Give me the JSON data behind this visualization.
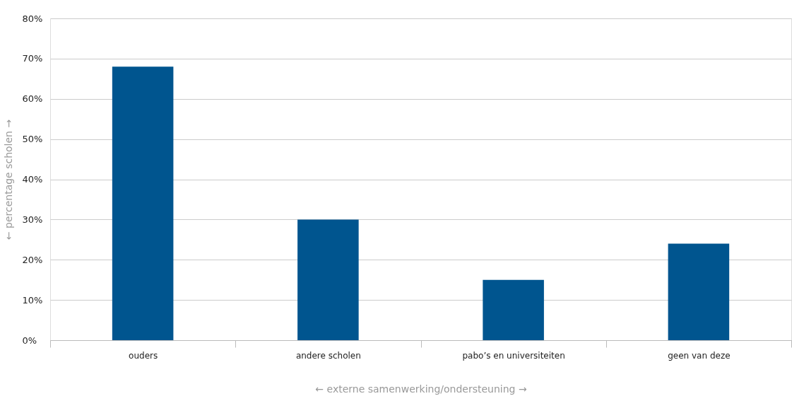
{
  "chart_data": {
    "type": "bar",
    "xlabel": "← externe samenwerking/ondersteuning →",
    "ylabel": "← percentage scholen →",
    "categories": [
      "ouders",
      "andere scholen",
      "pabo’s en universiteiten",
      "geen van deze"
    ],
    "values": [
      68,
      30,
      15,
      24
    ],
    "color": "#00558f",
    "ylim": [
      0,
      80
    ],
    "yticks": [
      {
        "value": 0,
        "label": "0%"
      },
      {
        "value": 10,
        "label": "10%"
      },
      {
        "value": 20,
        "label": "20%"
      },
      {
        "value": 30,
        "label": "30%"
      },
      {
        "value": 40,
        "label": "40%"
      },
      {
        "value": 50,
        "label": "50%"
      },
      {
        "value": 60,
        "label": "60%"
      },
      {
        "value": 70,
        "label": "70%"
      },
      {
        "value": 80,
        "label": "80%"
      }
    ],
    "grid": "y"
  }
}
